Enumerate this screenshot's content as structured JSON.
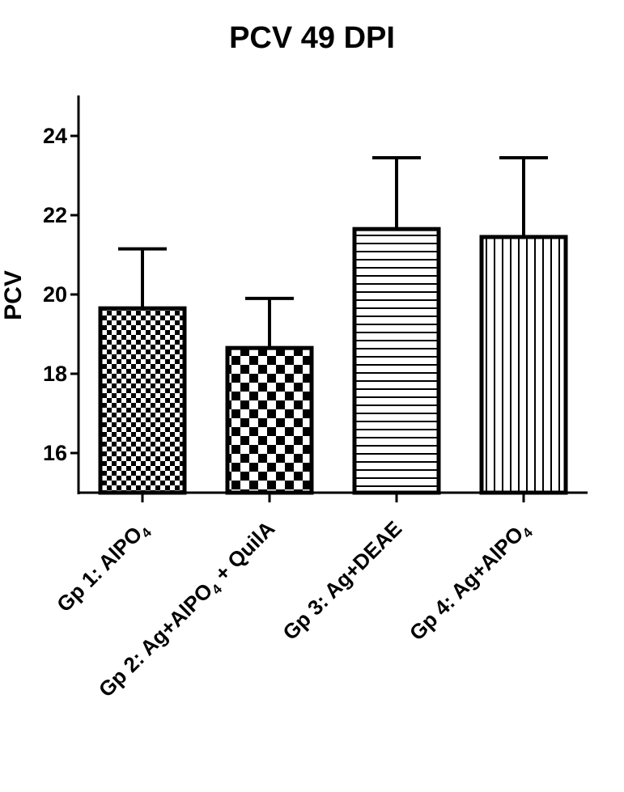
{
  "chart_data": {
    "type": "bar",
    "title": "PCV 49 DPI",
    "xlabel": "",
    "ylabel": "PCV",
    "ylim": [
      15,
      25
    ],
    "yticks": [
      16,
      18,
      20,
      22,
      24
    ],
    "grid": false,
    "categories": [
      {
        "main": "Gp 1: AlPO",
        "sub": "4",
        "tail": ""
      },
      {
        "main": "Gp 2: Ag+AlPO",
        "sub": "4",
        "tail": " + QuilA"
      },
      {
        "main": "Gp 3: Ag+DEAE",
        "sub": "",
        "tail": ""
      },
      {
        "main": "Gp 4: Ag+AlPO",
        "sub": "4",
        "tail": ""
      }
    ],
    "values": [
      19.65,
      18.65,
      21.65,
      21.45
    ],
    "errors": [
      1.5,
      1.25,
      1.8,
      2.0
    ],
    "patterns": [
      "fine-checker",
      "coarse-checker",
      "horizontal-lines",
      "vertical-lines"
    ],
    "colors": {
      "bar_stroke": "#000000",
      "fill": "#000000",
      "background": "#ffffff"
    }
  }
}
